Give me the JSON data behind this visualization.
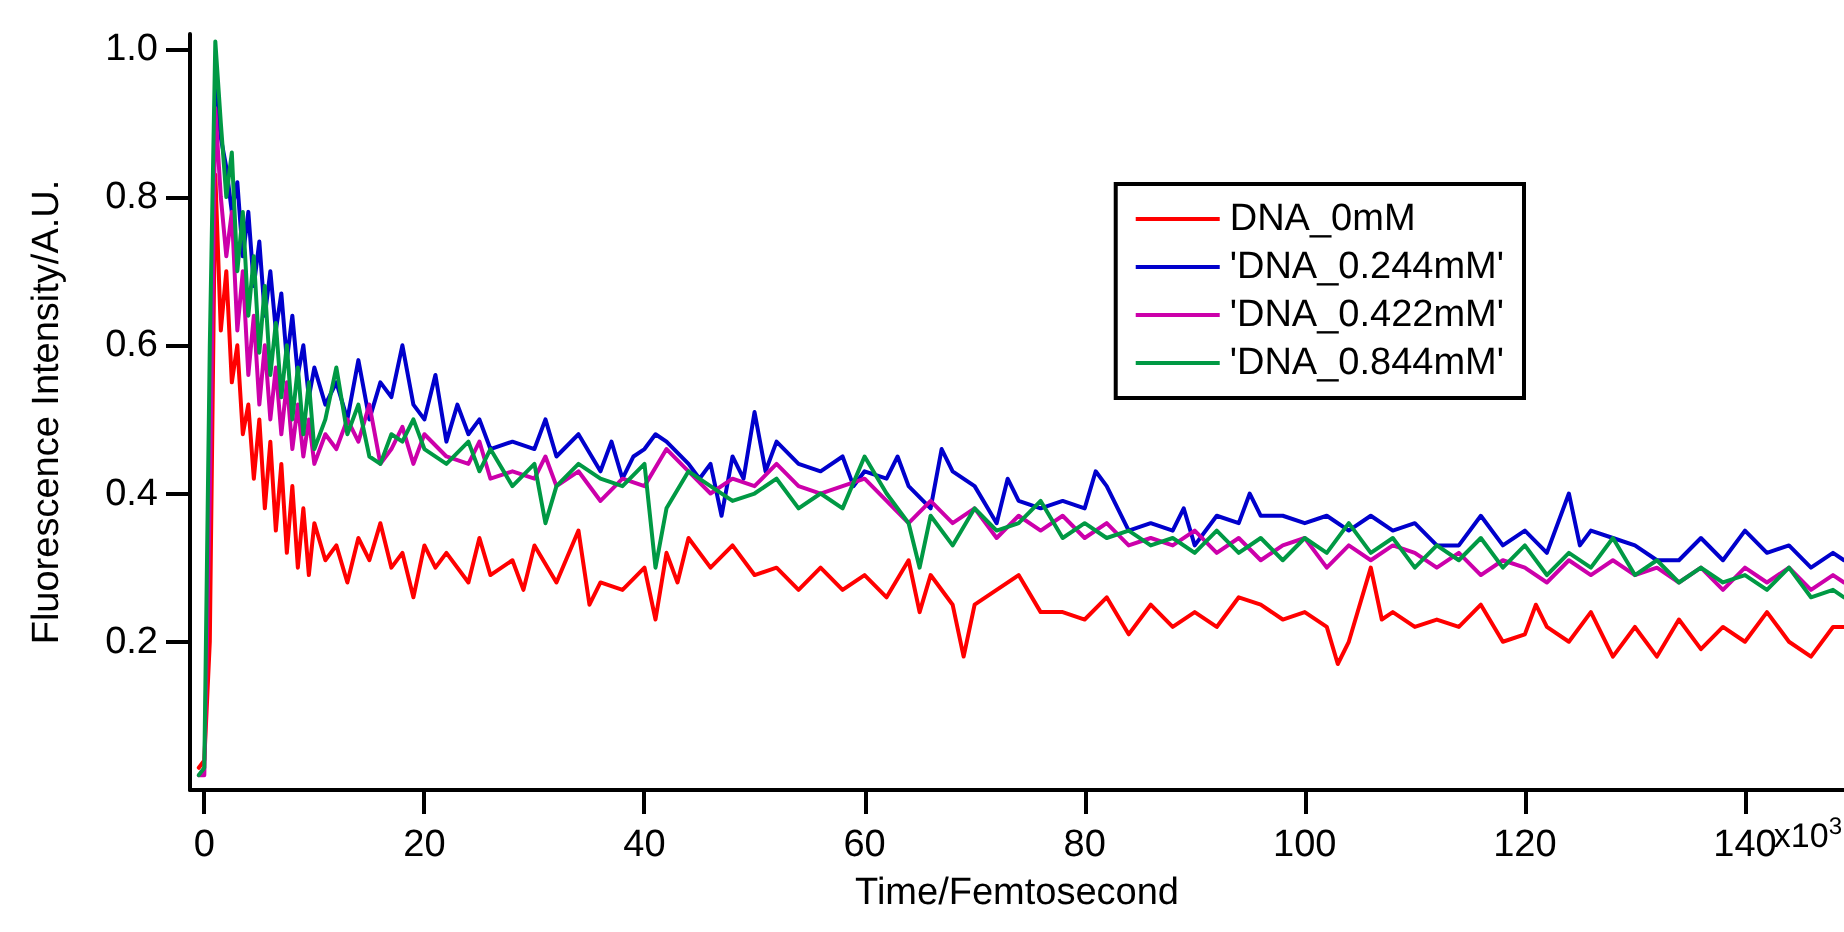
{
  "chart_data": {
    "type": "line",
    "xlabel": "Time/Femtosecond",
    "ylabel": "Fluorescence Intensity/A.U.",
    "xlim": [
      -1.3,
      149
    ],
    "ylim": [
      0,
      1.02
    ],
    "xticks": [
      0,
      20,
      40,
      60,
      80,
      100,
      120,
      140
    ],
    "annotations": [
      "x10$^{3}$"
    ],
    "yticks": [
      0.2,
      0.4,
      0.6,
      0.8,
      {
        "value": 1,
        "label": "1.0"
      }
    ],
    "grid": false,
    "legend": "top right",
    "marker": "none",
    "line_style": "solid",
    "series": [
      {
        "name": "DNA_0mM",
        "color": "#ff0000",
        "x": [
          -0.5,
          0,
          0.5,
          1,
          1.5,
          2,
          2.5,
          3,
          3.5,
          4,
          4.5,
          5,
          5.5,
          6,
          6.5,
          7,
          7.5,
          8,
          8.5,
          9,
          9.5,
          10,
          11,
          12,
          13,
          14,
          15,
          16,
          17,
          18,
          19,
          20,
          21,
          22,
          24,
          25,
          26,
          28,
          29,
          30,
          32,
          34,
          35,
          36,
          38,
          40,
          41,
          42,
          43,
          44,
          46,
          48,
          50,
          52,
          54,
          56,
          58,
          60,
          62,
          64,
          65,
          66,
          68,
          69,
          70,
          72,
          74,
          76,
          78,
          80,
          82,
          84,
          86,
          88,
          90,
          92,
          94,
          96,
          98,
          100,
          102,
          103,
          104,
          106,
          107,
          108,
          110,
          112,
          114,
          116,
          118,
          120,
          121,
          122,
          124,
          126,
          128,
          130,
          132,
          134,
          136,
          138,
          140,
          142,
          144,
          146,
          148,
          149
        ],
        "values": [
          0.03,
          0.04,
          0.2,
          0.83,
          0.62,
          0.7,
          0.55,
          0.6,
          0.48,
          0.52,
          0.42,
          0.5,
          0.38,
          0.47,
          0.35,
          0.44,
          0.32,
          0.41,
          0.3,
          0.38,
          0.29,
          0.36,
          0.31,
          0.33,
          0.28,
          0.34,
          0.31,
          0.36,
          0.3,
          0.32,
          0.26,
          0.33,
          0.3,
          0.32,
          0.28,
          0.34,
          0.29,
          0.31,
          0.27,
          0.33,
          0.28,
          0.35,
          0.25,
          0.28,
          0.27,
          0.3,
          0.23,
          0.32,
          0.28,
          0.34,
          0.3,
          0.33,
          0.29,
          0.3,
          0.27,
          0.3,
          0.27,
          0.29,
          0.26,
          0.31,
          0.24,
          0.29,
          0.25,
          0.18,
          0.25,
          0.27,
          0.29,
          0.24,
          0.24,
          0.23,
          0.26,
          0.21,
          0.25,
          0.22,
          0.24,
          0.22,
          0.26,
          0.25,
          0.23,
          0.24,
          0.22,
          0.17,
          0.2,
          0.3,
          0.23,
          0.24,
          0.22,
          0.23,
          0.22,
          0.25,
          0.2,
          0.21,
          0.25,
          0.22,
          0.2,
          0.24,
          0.18,
          0.22,
          0.18,
          0.23,
          0.19,
          0.22,
          0.2,
          0.24,
          0.2,
          0.18,
          0.22,
          0.22
        ]
      },
      {
        "name": "'DNA_0.244mM'",
        "color": "#0000cc",
        "x": [
          0.5,
          1,
          1.5,
          2,
          2.5,
          3,
          3.5,
          4,
          4.5,
          5,
          5.5,
          6,
          6.5,
          7,
          7.5,
          8,
          8.5,
          9,
          9.5,
          10,
          11,
          12,
          13,
          14,
          15,
          16,
          17,
          18,
          19,
          20,
          21,
          22,
          23,
          24,
          25,
          26,
          28,
          30,
          31,
          32,
          34,
          36,
          37,
          38,
          39,
          40,
          41,
          42,
          44,
          45,
          46,
          47,
          48,
          49,
          50,
          51,
          52,
          54,
          56,
          58,
          59,
          60,
          62,
          63,
          64,
          66,
          67,
          68,
          70,
          72,
          73,
          74,
          76,
          78,
          80,
          81,
          82,
          84,
          86,
          88,
          89,
          90,
          92,
          94,
          95,
          96,
          98,
          100,
          102,
          104,
          106,
          108,
          110,
          112,
          114,
          116,
          118,
          120,
          122,
          124,
          125,
          126,
          128,
          130,
          132,
          134,
          136,
          138,
          140,
          142,
          144,
          146,
          148,
          149
        ],
        "values": [
          0.5,
          0.95,
          0.88,
          0.84,
          0.78,
          0.82,
          0.72,
          0.78,
          0.68,
          0.74,
          0.64,
          0.7,
          0.62,
          0.67,
          0.58,
          0.64,
          0.56,
          0.6,
          0.53,
          0.57,
          0.52,
          0.55,
          0.5,
          0.58,
          0.5,
          0.55,
          0.53,
          0.6,
          0.52,
          0.5,
          0.56,
          0.47,
          0.52,
          0.48,
          0.5,
          0.46,
          0.47,
          0.46,
          0.5,
          0.45,
          0.48,
          0.43,
          0.47,
          0.42,
          0.45,
          0.46,
          0.48,
          0.47,
          0.44,
          0.42,
          0.44,
          0.37,
          0.45,
          0.42,
          0.51,
          0.43,
          0.47,
          0.44,
          0.43,
          0.45,
          0.41,
          0.43,
          0.42,
          0.45,
          0.41,
          0.38,
          0.46,
          0.43,
          0.41,
          0.36,
          0.42,
          0.39,
          0.38,
          0.39,
          0.38,
          0.43,
          0.41,
          0.35,
          0.36,
          0.35,
          0.38,
          0.33,
          0.37,
          0.36,
          0.4,
          0.37,
          0.37,
          0.36,
          0.37,
          0.35,
          0.37,
          0.35,
          0.36,
          0.33,
          0.33,
          0.37,
          0.33,
          0.35,
          0.32,
          0.4,
          0.33,
          0.35,
          0.34,
          0.33,
          0.31,
          0.31,
          0.34,
          0.31,
          0.35,
          0.32,
          0.33,
          0.3,
          0.32,
          0.31
        ]
      },
      {
        "name": "'DNA_0.422mM'",
        "color": "#cc00aa",
        "x": [
          -0.5,
          0,
          0.5,
          1,
          1.5,
          2,
          2.5,
          3,
          3.5,
          4,
          4.5,
          5,
          5.5,
          6,
          6.5,
          7,
          7.5,
          8,
          8.5,
          9,
          9.5,
          10,
          11,
          12,
          13,
          14,
          15,
          16,
          17,
          18,
          19,
          20,
          22,
          24,
          25,
          26,
          28,
          30,
          31,
          32,
          34,
          36,
          38,
          40,
          42,
          44,
          46,
          48,
          50,
          52,
          54,
          56,
          58,
          60,
          62,
          64,
          66,
          68,
          70,
          72,
          74,
          76,
          78,
          80,
          82,
          84,
          86,
          88,
          90,
          92,
          94,
          96,
          98,
          100,
          102,
          104,
          106,
          108,
          110,
          112,
          114,
          116,
          118,
          120,
          122,
          124,
          126,
          128,
          130,
          132,
          134,
          136,
          138,
          140,
          142,
          144,
          146,
          148,
          149
        ],
        "values": [
          0.02,
          0.02,
          0.4,
          0.92,
          0.8,
          0.72,
          0.78,
          0.62,
          0.7,
          0.56,
          0.64,
          0.52,
          0.6,
          0.5,
          0.57,
          0.48,
          0.55,
          0.46,
          0.52,
          0.45,
          0.5,
          0.44,
          0.48,
          0.46,
          0.5,
          0.47,
          0.52,
          0.44,
          0.46,
          0.49,
          0.44,
          0.48,
          0.45,
          0.44,
          0.47,
          0.42,
          0.43,
          0.42,
          0.45,
          0.41,
          0.43,
          0.39,
          0.42,
          0.41,
          0.46,
          0.43,
          0.4,
          0.42,
          0.41,
          0.44,
          0.41,
          0.4,
          0.41,
          0.42,
          0.39,
          0.36,
          0.39,
          0.36,
          0.38,
          0.34,
          0.37,
          0.35,
          0.37,
          0.34,
          0.36,
          0.33,
          0.34,
          0.33,
          0.35,
          0.32,
          0.34,
          0.31,
          0.33,
          0.34,
          0.3,
          0.33,
          0.31,
          0.33,
          0.32,
          0.3,
          0.32,
          0.29,
          0.31,
          0.3,
          0.28,
          0.31,
          0.29,
          0.31,
          0.29,
          0.3,
          0.28,
          0.3,
          0.27,
          0.3,
          0.28,
          0.3,
          0.27,
          0.29,
          0.28
        ]
      },
      {
        "name": "'DNA_0.844mM'",
        "color": "#009944",
        "x": [
          -0.5,
          0,
          0.5,
          1,
          1.5,
          2,
          2.5,
          3,
          3.5,
          4,
          4.5,
          5,
          5.5,
          6,
          6.5,
          7,
          7.5,
          8,
          8.5,
          9,
          9.5,
          10,
          11,
          12,
          13,
          14,
          15,
          16,
          17,
          18,
          19,
          20,
          22,
          24,
          25,
          26,
          28,
          30,
          31,
          32,
          34,
          36,
          38,
          40,
          41,
          42,
          44,
          46,
          48,
          50,
          52,
          54,
          56,
          58,
          60,
          62,
          64,
          65,
          66,
          68,
          70,
          72,
          74,
          76,
          78,
          80,
          82,
          84,
          86,
          88,
          90,
          92,
          94,
          96,
          98,
          100,
          102,
          104,
          106,
          108,
          110,
          112,
          114,
          116,
          118,
          120,
          122,
          124,
          126,
          128,
          130,
          132,
          134,
          136,
          138,
          140,
          142,
          144,
          146,
          148,
          149
        ],
        "values": [
          0.02,
          0.03,
          0.6,
          1.01,
          0.9,
          0.8,
          0.86,
          0.7,
          0.78,
          0.64,
          0.72,
          0.59,
          0.68,
          0.56,
          0.63,
          0.53,
          0.6,
          0.5,
          0.57,
          0.48,
          0.55,
          0.46,
          0.5,
          0.57,
          0.48,
          0.52,
          0.45,
          0.44,
          0.48,
          0.47,
          0.5,
          0.46,
          0.44,
          0.47,
          0.43,
          0.46,
          0.41,
          0.44,
          0.36,
          0.41,
          0.44,
          0.42,
          0.41,
          0.44,
          0.3,
          0.38,
          0.43,
          0.41,
          0.39,
          0.4,
          0.42,
          0.38,
          0.4,
          0.38,
          0.45,
          0.4,
          0.36,
          0.3,
          0.37,
          0.33,
          0.38,
          0.35,
          0.36,
          0.39,
          0.34,
          0.36,
          0.34,
          0.35,
          0.33,
          0.34,
          0.32,
          0.35,
          0.32,
          0.34,
          0.31,
          0.34,
          0.32,
          0.36,
          0.32,
          0.34,
          0.3,
          0.33,
          0.31,
          0.34,
          0.3,
          0.33,
          0.29,
          0.32,
          0.3,
          0.34,
          0.29,
          0.31,
          0.28,
          0.3,
          0.28,
          0.29,
          0.27,
          0.3,
          0.26,
          0.27,
          0.26
        ]
      }
    ]
  }
}
